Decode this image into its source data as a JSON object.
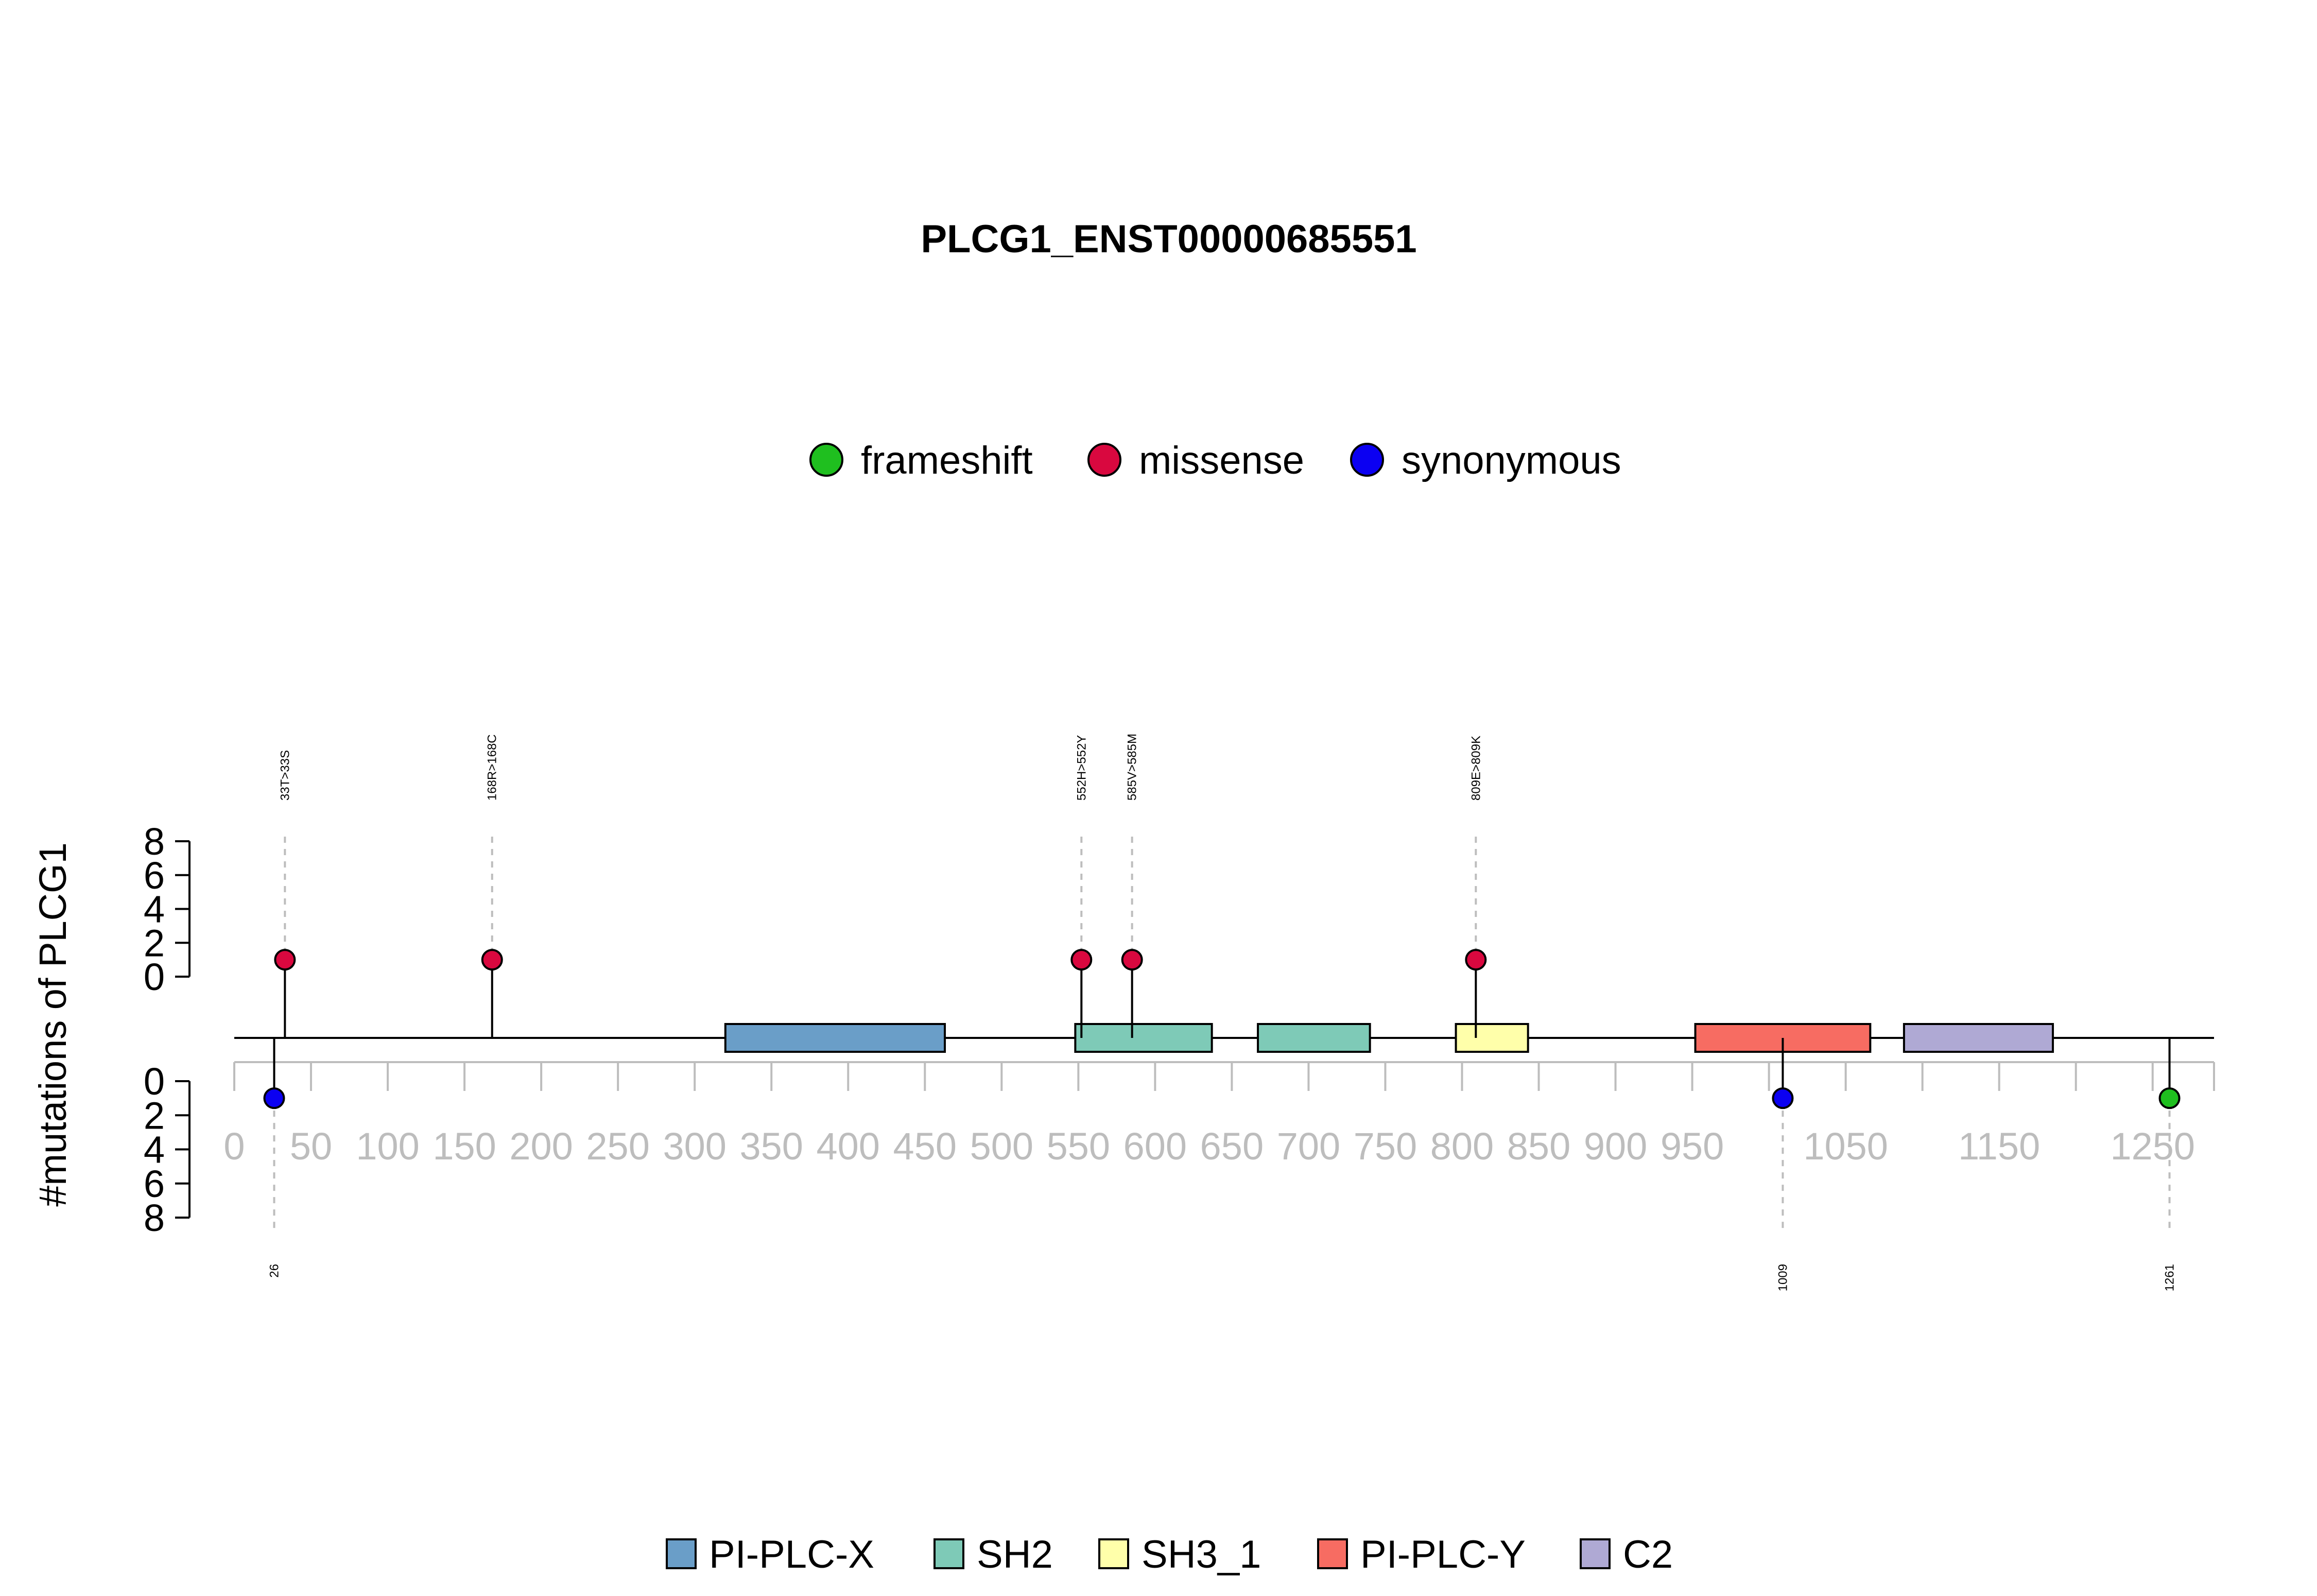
{
  "chart_data": {
    "type": "lollipop",
    "title": "PLCG1_ENST00000685551",
    "ylabel": "#mutations of PLCG1",
    "xlim": [
      0,
      1290
    ],
    "ylim": [
      0,
      8
    ],
    "y_ticks": [
      0,
      2,
      4,
      6,
      8
    ],
    "x_ticks": [
      0,
      50,
      100,
      150,
      200,
      250,
      300,
      350,
      400,
      450,
      500,
      550,
      600,
      650,
      700,
      750,
      800,
      850,
      900,
      950,
      1000,
      1050,
      1100,
      1150,
      1200,
      1250,
      1290
    ],
    "x_tick_labels": [
      "0",
      "50",
      "100",
      "150",
      "200",
      "250",
      "300",
      "350",
      "400",
      "450",
      "500",
      "550",
      "600",
      "650",
      "700",
      "750",
      "800",
      "850",
      "900",
      "950",
      "1050",
      "1150",
      "1250"
    ],
    "x_tick_label_values": [
      0,
      50,
      100,
      150,
      200,
      250,
      300,
      350,
      400,
      450,
      500,
      550,
      600,
      650,
      700,
      750,
      800,
      850,
      900,
      950,
      1050,
      1150,
      1250
    ],
    "mutation_legend": [
      {
        "name": "frameshift",
        "color": "#1FBF1F"
      },
      {
        "name": "missense",
        "color": "#D9083F"
      },
      {
        "name": "synonymous",
        "color": "#0B00F2"
      }
    ],
    "domain_legend": [
      {
        "name": "PI-PLC-X",
        "color": "#6A9EC8"
      },
      {
        "name": "SH2",
        "color": "#7ECAB7"
      },
      {
        "name": "SH3_1",
        "color": "#FFFFAA"
      },
      {
        "name": "PI-PLC-Y",
        "color": "#F76C62"
      },
      {
        "name": "C2",
        "color": "#AFA9D4"
      }
    ],
    "domains": [
      {
        "name": "PI-PLC-X",
        "start": 320,
        "end": 463,
        "color": "#6A9EC8"
      },
      {
        "name": "SH2",
        "start": 548,
        "end": 637,
        "color": "#7ECAB7"
      },
      {
        "name": "SH2",
        "start": 667,
        "end": 740,
        "color": "#7ECAB7"
      },
      {
        "name": "SH3_1",
        "start": 796,
        "end": 843,
        "color": "#FFFFAA"
      },
      {
        "name": "PI-PLC-Y",
        "start": 952,
        "end": 1066,
        "color": "#F76C62"
      },
      {
        "name": "C2",
        "start": 1088,
        "end": 1185,
        "color": "#AFA9D4"
      }
    ],
    "mutations_above": [
      {
        "pos": 33,
        "count": 1,
        "type": "missense",
        "label": "33T>33S"
      },
      {
        "pos": 168,
        "count": 1,
        "type": "missense",
        "label": "168R>168C"
      },
      {
        "pos": 552,
        "count": 1,
        "type": "missense",
        "label": "552H>552Y"
      },
      {
        "pos": 585,
        "count": 1,
        "type": "missense",
        "label": "585V>585M"
      },
      {
        "pos": 809,
        "count": 1,
        "type": "missense",
        "label": "809E>809K"
      }
    ],
    "mutations_below": [
      {
        "pos": 26,
        "count": 1,
        "type": "synonymous",
        "label": "26"
      },
      {
        "pos": 1009,
        "count": 1,
        "type": "synonymous",
        "label": "1009"
      },
      {
        "pos": 1261,
        "count": 1,
        "type": "frameshift",
        "label": "1261"
      }
    ]
  }
}
